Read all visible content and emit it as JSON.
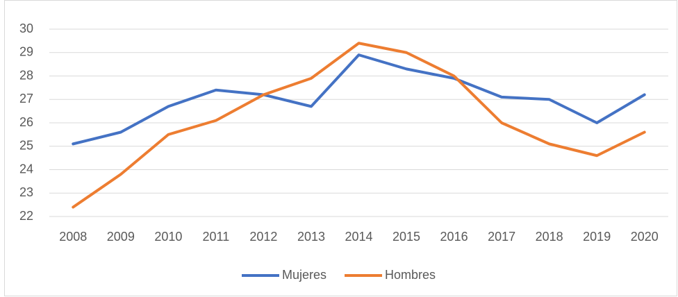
{
  "chart_data": {
    "type": "line",
    "categories": [
      "2008",
      "2009",
      "2010",
      "2011",
      "2012",
      "2013",
      "2014",
      "2015",
      "2016",
      "2017",
      "2018",
      "2019",
      "2020"
    ],
    "series": [
      {
        "name": "Mujeres",
        "color": "#4472c4",
        "values": [
          25.1,
          25.6,
          26.7,
          27.4,
          27.2,
          26.7,
          28.9,
          28.3,
          27.9,
          27.1,
          27.0,
          26.0,
          27.2
        ]
      },
      {
        "name": "Hombres",
        "color": "#ed7d31",
        "values": [
          22.4,
          23.8,
          25.5,
          26.1,
          27.2,
          27.9,
          29.4,
          29.0,
          28.0,
          26.0,
          25.1,
          24.6,
          25.6
        ]
      }
    ],
    "ylim": [
      22,
      30
    ],
    "yticks": [
      22,
      23,
      24,
      25,
      26,
      27,
      28,
      29,
      30
    ],
    "grid": true,
    "legend": "bottom"
  }
}
